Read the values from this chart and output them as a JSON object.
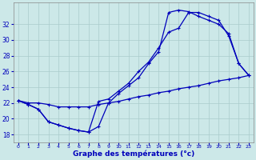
{
  "xlabel": "Graphe des températures (°c)",
  "xlim": [
    -0.5,
    23.5
  ],
  "ylim": [
    17.0,
    34.8
  ],
  "yticks": [
    18,
    20,
    22,
    24,
    26,
    28,
    30,
    32
  ],
  "xticks": [
    0,
    1,
    2,
    3,
    4,
    5,
    6,
    7,
    8,
    9,
    10,
    11,
    12,
    13,
    14,
    15,
    16,
    17,
    18,
    19,
    20,
    21,
    22,
    23
  ],
  "background_color": "#cce8e8",
  "line_color": "#0000bb",
  "grid_color": "#aacccc",
  "line1_x": [
    0,
    1,
    2,
    3,
    4,
    5,
    6,
    7,
    8,
    9,
    10,
    11,
    12,
    13,
    14,
    15,
    16,
    17,
    18,
    19,
    20,
    21,
    22,
    23
  ],
  "line1_y": [
    22.3,
    21.8,
    21.2,
    19.6,
    19.2,
    18.8,
    18.5,
    18.3,
    19.0,
    22.0,
    23.2,
    24.2,
    25.2,
    27.0,
    28.5,
    33.5,
    33.8,
    33.6,
    33.0,
    32.5,
    32.0,
    30.8,
    27.0,
    25.5
  ],
  "line2_x": [
    0,
    1,
    2,
    3,
    4,
    5,
    6,
    7,
    8,
    9,
    10,
    11,
    12,
    13,
    14,
    15,
    16,
    17,
    18,
    19,
    20,
    21,
    22,
    23
  ],
  "line2_y": [
    22.3,
    21.8,
    21.2,
    19.6,
    19.2,
    18.8,
    18.5,
    18.3,
    22.2,
    22.5,
    23.5,
    24.5,
    26.0,
    27.2,
    29.0,
    31.0,
    31.5,
    33.5,
    33.5,
    33.0,
    32.5,
    30.5,
    27.0,
    25.5
  ],
  "line3_x": [
    0,
    1,
    2,
    3,
    4,
    5,
    6,
    7,
    8,
    9,
    10,
    11,
    12,
    13,
    14,
    15,
    16,
    17,
    18,
    19,
    20,
    21,
    22,
    23
  ],
  "line3_y": [
    22.3,
    22.0,
    22.0,
    21.8,
    21.5,
    21.5,
    21.5,
    21.5,
    21.8,
    22.0,
    22.2,
    22.5,
    22.8,
    23.0,
    23.3,
    23.5,
    23.8,
    24.0,
    24.2,
    24.5,
    24.8,
    25.0,
    25.2,
    25.5
  ],
  "figsize": [
    3.2,
    2.0
  ],
  "dpi": 100
}
